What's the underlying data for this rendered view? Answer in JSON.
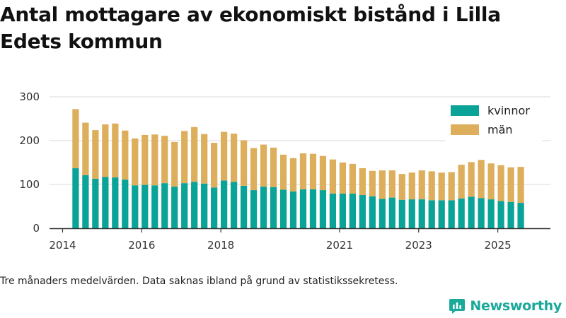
{
  "page": {
    "title": "Antal mottagare av ekonomiskt bistånd i Lilla Edets kommun",
    "caption": "Tre månaders medelvärden. Data saknas ibland på grund av statistikssekretess.",
    "brand": "Newsworthy"
  },
  "colors": {
    "kvinnor": "#0aa397",
    "man": "#ddae5b",
    "grid": "#d9d9d9",
    "axis": "#333333",
    "brand": "#1aa99a"
  },
  "chart_data": {
    "type": "bar",
    "stacked": true,
    "title": "Antal mottagare av ekonomiskt bistånd i Lilla Edets kommun",
    "xlabel": "",
    "ylabel": "",
    "ylim": [
      0,
      300
    ],
    "yticks": [
      0,
      100,
      200,
      300
    ],
    "xlim": [
      2013.67,
      2026.33
    ],
    "xticks": [
      {
        "value": 2014,
        "label": "2014"
      },
      {
        "value": 2016,
        "label": "2016"
      },
      {
        "value": 2018,
        "label": "2018"
      },
      {
        "value": 2021,
        "label": "2021"
      },
      {
        "value": 2023,
        "label": "2023"
      },
      {
        "value": 2025,
        "label": "2025"
      }
    ],
    "legend": {
      "position": "top-right",
      "entries": [
        "kvinnor",
        "män"
      ]
    },
    "x": [
      2014.33,
      2014.58,
      2014.83,
      2015.08,
      2015.33,
      2015.58,
      2015.83,
      2016.08,
      2016.33,
      2016.58,
      2016.83,
      2017.08,
      2017.33,
      2017.58,
      2017.83,
      2018.08,
      2018.33,
      2018.58,
      2018.83,
      2019.08,
      2019.33,
      2019.58,
      2019.83,
      2020.08,
      2020.33,
      2020.58,
      2020.83,
      2021.08,
      2021.33,
      2021.58,
      2021.83,
      2022.08,
      2022.33,
      2022.58,
      2022.83,
      2023.08,
      2023.33,
      2023.58,
      2023.83,
      2024.08,
      2024.33,
      2024.58,
      2024.83,
      2025.08,
      2025.33,
      2025.58
    ],
    "series": [
      {
        "name": "kvinnor",
        "values": [
          137,
          121,
          113,
          117,
          116,
          111,
          98,
          99,
          98,
          103,
          95,
          103,
          106,
          102,
          93,
          109,
          106,
          97,
          87,
          95,
          94,
          88,
          84,
          89,
          89,
          87,
          79,
          79,
          79,
          76,
          73,
          67,
          70,
          65,
          66,
          66,
          64,
          64,
          64,
          68,
          72,
          69,
          66,
          62,
          60,
          58
        ]
      },
      {
        "name": "män",
        "values": [
          135,
          120,
          111,
          120,
          123,
          112,
          107,
          114,
          116,
          108,
          102,
          119,
          125,
          113,
          102,
          111,
          110,
          104,
          96,
          96,
          90,
          80,
          76,
          82,
          81,
          78,
          78,
          71,
          68,
          61,
          58,
          65,
          62,
          59,
          61,
          66,
          66,
          63,
          64,
          77,
          79,
          87,
          82,
          82,
          79,
          82
        ]
      }
    ]
  }
}
